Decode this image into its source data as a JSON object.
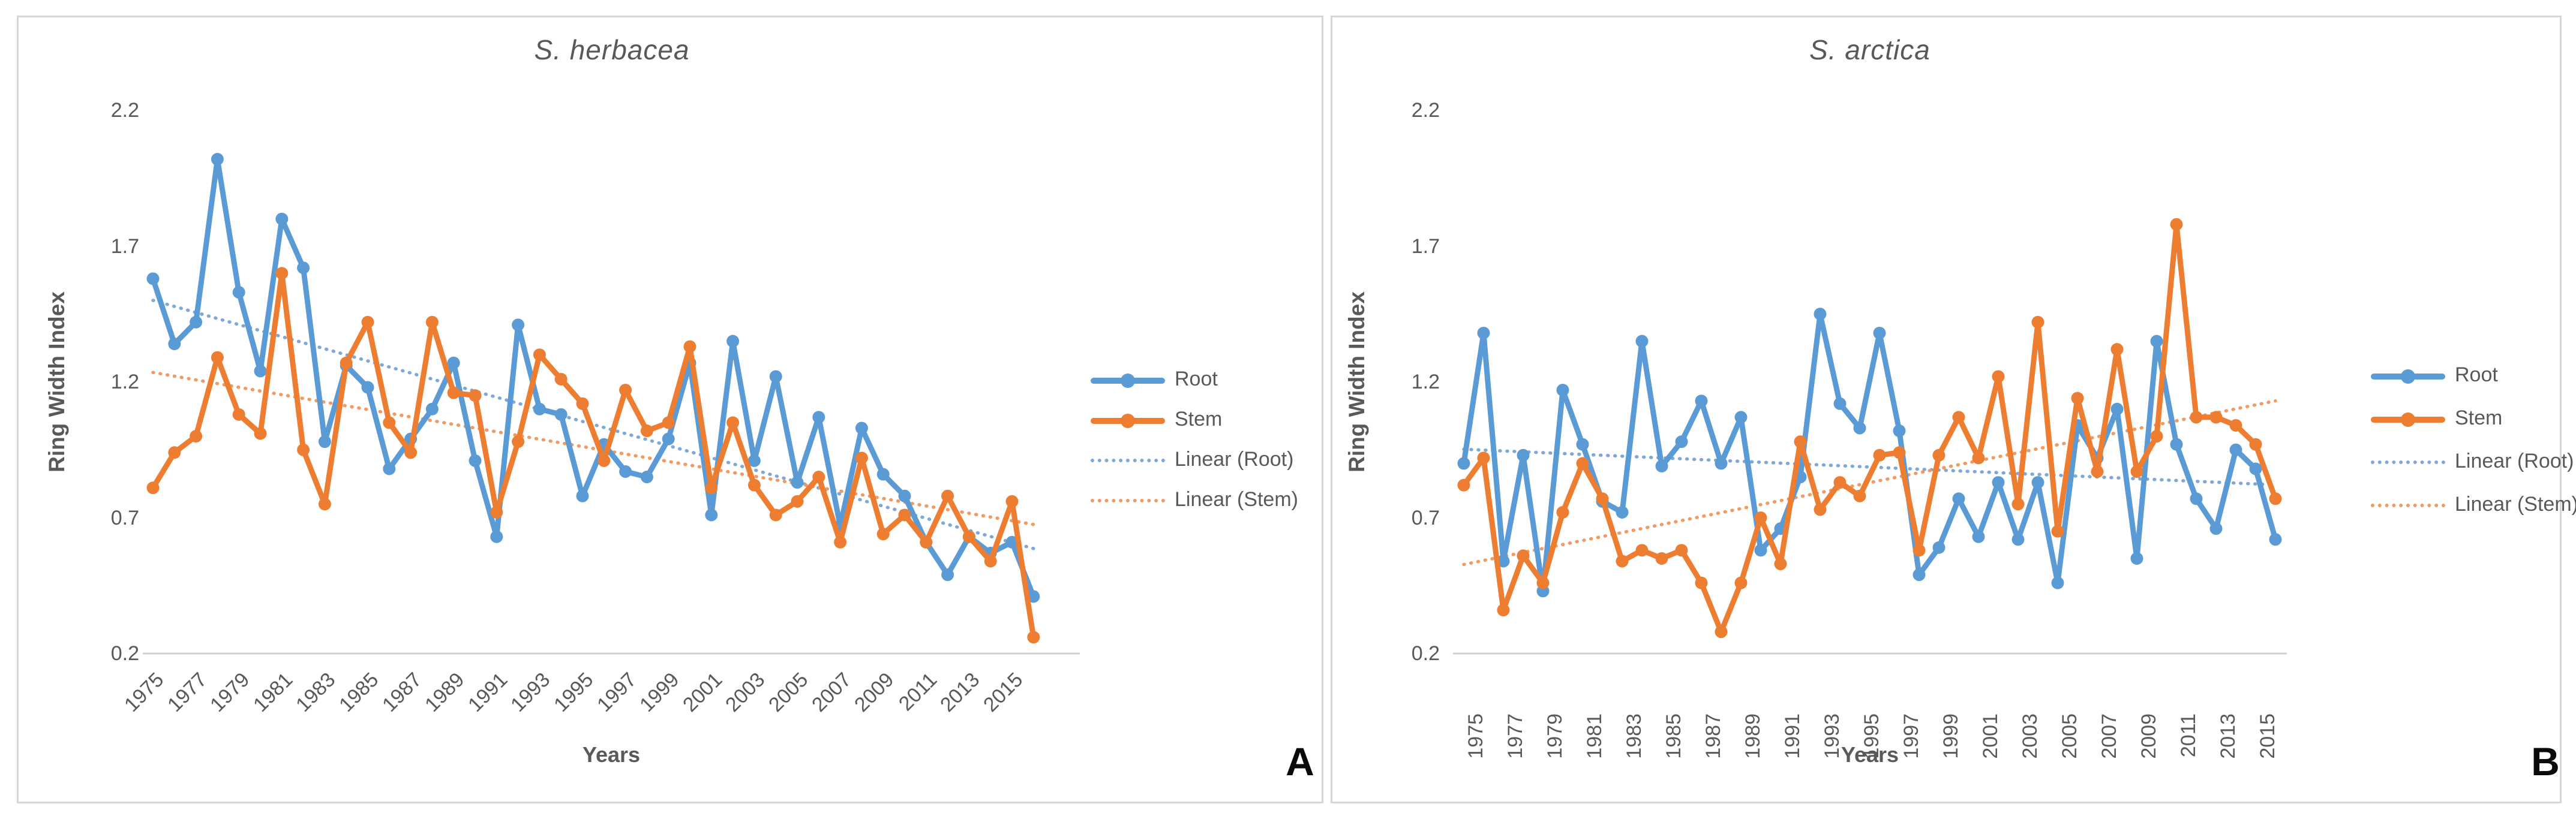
{
  "figure": {
    "background": "#ffffff",
    "colors": {
      "root": "#5B9BD5",
      "stem": "#ED7D31",
      "root_trend": "#7FA8D9",
      "stem_trend": "#F19A63",
      "axis_text": "#595959",
      "axis_line": "#d0d0d0",
      "panel_border": "#d6d6d6",
      "letter": "#0a0a0a"
    },
    "panels": [
      {
        "letter": "A",
        "title": "S. herbacea",
        "y_axis_label": "Ring Width Index",
        "x_axis_label": "Years",
        "y_ticks": [
          "2.2",
          "1.7",
          "1.2",
          "0.7",
          "0.2"
        ],
        "legend": [
          "Root",
          "Stem",
          "Linear (Root)",
          "Linear (Stem)"
        ]
      },
      {
        "letter": "B",
        "title": "S. arctica",
        "y_axis_label": "Ring Width Index",
        "x_axis_label": "Years",
        "y_ticks": [
          "2.2",
          "1.7",
          "1.2",
          "0.7",
          "0.2"
        ],
        "legend": [
          "Root",
          "Stem",
          "Linear (Root)",
          "Linear (Stem)"
        ]
      }
    ]
  },
  "chart_data": [
    {
      "type": "line",
      "title": "S. herbacea",
      "xlabel": "Years",
      "ylabel": "Ring Width Index",
      "ylim": [
        0.2,
        2.2
      ],
      "yticks": [
        2.2,
        1.7,
        1.2,
        0.7,
        0.2
      ],
      "grid": false,
      "legend_position": "right",
      "x": [
        1975,
        1976,
        1977,
        1978,
        1979,
        1980,
        1981,
        1982,
        1983,
        1984,
        1985,
        1986,
        1987,
        1988,
        1989,
        1990,
        1991,
        1992,
        1993,
        1994,
        1995,
        1996,
        1997,
        1998,
        1999,
        2000,
        2001,
        2002,
        2003,
        2004,
        2005,
        2006,
        2007,
        2008,
        2009,
        2010,
        2011,
        2012,
        2013,
        2014,
        2015,
        2016
      ],
      "x_tick_labels": [
        1975,
        1977,
        1979,
        1981,
        1983,
        1985,
        1987,
        1989,
        1991,
        1993,
        1995,
        1997,
        1999,
        2001,
        2003,
        2005,
        2007,
        2009,
        2011,
        2013,
        2015
      ],
      "series": [
        {
          "name": "Root",
          "color": "#5B9BD5",
          "values": [
            1.58,
            1.34,
            1.42,
            2.02,
            1.53,
            1.24,
            1.8,
            1.62,
            0.98,
            1.26,
            1.18,
            0.88,
            0.99,
            1.1,
            1.27,
            0.91,
            0.63,
            1.41,
            1.1,
            1.08,
            0.78,
            0.97,
            0.87,
            0.85,
            0.99,
            1.27,
            0.71,
            1.35,
            0.91,
            1.22,
            0.83,
            1.07,
            0.67,
            1.03,
            0.86,
            0.78,
            0.61,
            0.49,
            0.63,
            0.57,
            0.61,
            0.41
          ]
        },
        {
          "name": "Stem",
          "color": "#ED7D31",
          "values": [
            0.81,
            0.94,
            1.0,
            1.29,
            1.08,
            1.01,
            1.6,
            0.95,
            0.75,
            1.27,
            1.42,
            1.05,
            0.94,
            1.42,
            1.16,
            1.15,
            0.72,
            0.98,
            1.3,
            1.21,
            1.12,
            0.91,
            1.17,
            1.02,
            1.05,
            1.33,
            0.81,
            1.05,
            0.82,
            0.71,
            0.76,
            0.85,
            0.61,
            0.92,
            0.64,
            0.71,
            0.61,
            0.78,
            0.63,
            0.54,
            0.76,
            0.26
          ]
        }
      ],
      "trendlines": [
        {
          "name": "Linear (Root)",
          "series": "Root",
          "style": "dotted",
          "color": "#7FA8D9"
        },
        {
          "name": "Linear (Stem)",
          "series": "Stem",
          "style": "dotted",
          "color": "#F19A63"
        }
      ]
    },
    {
      "type": "line",
      "title": "S. arctica",
      "xlabel": "Years",
      "ylabel": "Ring Width Index",
      "ylim": [
        0.2,
        2.2
      ],
      "yticks": [
        2.2,
        1.7,
        1.2,
        0.7,
        0.2
      ],
      "grid": false,
      "legend_position": "right",
      "x": [
        1975,
        1976,
        1977,
        1978,
        1979,
        1980,
        1981,
        1982,
        1983,
        1984,
        1985,
        1986,
        1987,
        1988,
        1989,
        1990,
        1991,
        1992,
        1993,
        1994,
        1995,
        1996,
        1997,
        1998,
        1999,
        2000,
        2001,
        2002,
        2003,
        2004,
        2005,
        2006,
        2007,
        2008,
        2009,
        2010,
        2011,
        2012,
        2013,
        2014,
        2015,
        2016
      ],
      "x_tick_labels": [
        1975,
        1977,
        1979,
        1981,
        1983,
        1985,
        1987,
        1989,
        1991,
        1993,
        1995,
        1997,
        1999,
        2001,
        2003,
        2005,
        2007,
        2009,
        2011,
        2013,
        2015
      ],
      "series": [
        {
          "name": "Root",
          "color": "#5B9BD5",
          "values": [
            0.9,
            1.38,
            0.54,
            0.93,
            0.43,
            1.17,
            0.97,
            0.76,
            0.72,
            1.35,
            0.89,
            0.98,
            1.13,
            0.9,
            1.07,
            0.58,
            0.66,
            0.85,
            1.45,
            1.12,
            1.03,
            1.38,
            1.02,
            0.49,
            0.59,
            0.77,
            0.63,
            0.83,
            0.62,
            0.83,
            0.46,
            1.04,
            0.92,
            1.1,
            0.55,
            1.35,
            0.97,
            0.77,
            0.66,
            0.95,
            0.88,
            0.62
          ]
        },
        {
          "name": "Stem",
          "color": "#ED7D31",
          "values": [
            0.82,
            0.92,
            0.36,
            0.56,
            0.46,
            0.72,
            0.9,
            0.77,
            0.54,
            0.58,
            0.55,
            0.58,
            0.46,
            0.28,
            0.46,
            0.7,
            0.53,
            0.98,
            0.73,
            0.83,
            0.78,
            0.93,
            0.94,
            0.58,
            0.93,
            1.07,
            0.92,
            1.22,
            0.75,
            1.42,
            0.65,
            1.14,
            0.87,
            1.32,
            0.87,
            1.0,
            1.78,
            1.07,
            1.07,
            1.04,
            0.97,
            0.77
          ]
        }
      ],
      "trendlines": [
        {
          "name": "Linear (Root)",
          "series": "Root",
          "style": "dotted",
          "color": "#7FA8D9"
        },
        {
          "name": "Linear (Stem)",
          "series": "Stem",
          "style": "dotted",
          "color": "#F19A63"
        }
      ]
    }
  ]
}
